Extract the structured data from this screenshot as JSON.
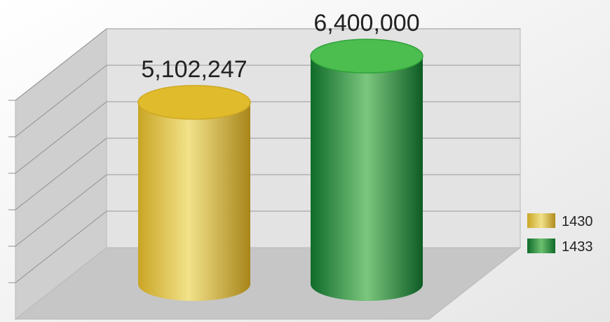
{
  "chart_data": {
    "type": "bar",
    "style": "3d-cylinder",
    "categories": [
      "1430",
      "1433"
    ],
    "values": [
      5102247,
      6400000
    ],
    "data_labels": [
      "5,102,247",
      "6,400,000"
    ],
    "colors": [
      "#d4b02a",
      "#1e8a3a"
    ],
    "title": "",
    "xlabel": "",
    "ylabel": "",
    "ylim": [
      0,
      7000000
    ],
    "grid": true,
    "legend": {
      "position": "right",
      "entries": [
        {
          "label": "1430",
          "color": "#d4b02a"
        },
        {
          "label": "1433",
          "color": "#1e8a3a"
        }
      ]
    }
  }
}
